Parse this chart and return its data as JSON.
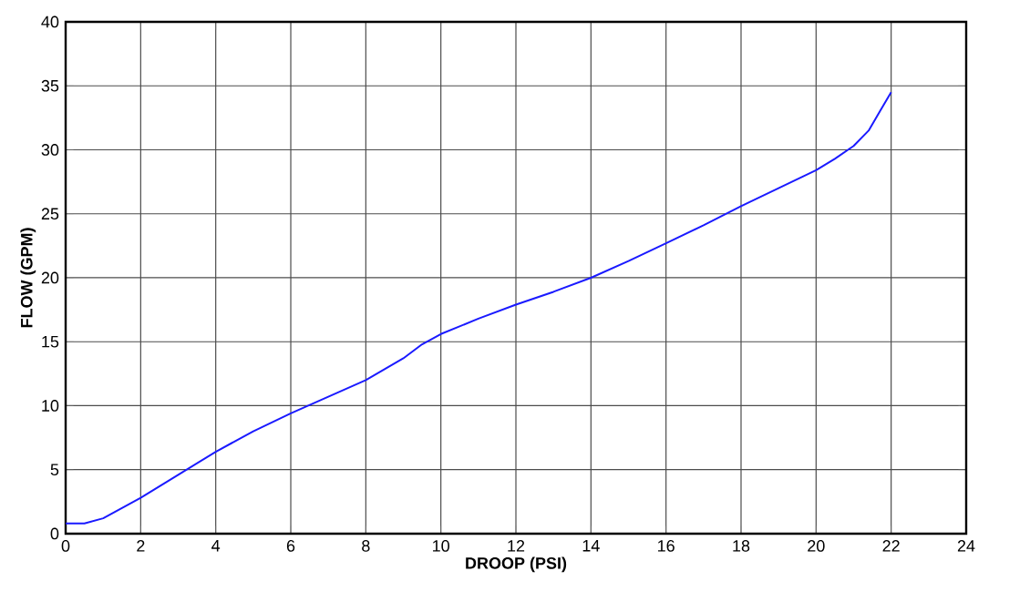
{
  "chart_data": {
    "type": "line",
    "xlabel": "DROOP (PSI)",
    "ylabel": "FLOW (GPM)",
    "xlim": [
      0,
      24
    ],
    "xticks": [
      0,
      2,
      4,
      6,
      8,
      10,
      12,
      14,
      16,
      18,
      20,
      22,
      24
    ],
    "ylim": [
      0,
      40
    ],
    "yticks": [
      0,
      5,
      10,
      15,
      20,
      25,
      30,
      35,
      40
    ],
    "grid": true,
    "marker": "none",
    "x": [
      0,
      0.5,
      1,
      2,
      3,
      4,
      5,
      6,
      7,
      8,
      9,
      9.5,
      10,
      11,
      12,
      13,
      14,
      15,
      16,
      17,
      18,
      19,
      20,
      20.5,
      21,
      21.4,
      21.7,
      22
    ],
    "series": [
      {
        "color": "#1a1aff",
        "values": [
          0.8,
          0.8,
          1.2,
          2.8,
          4.6,
          6.4,
          8,
          9.4,
          10.7,
          12,
          13.7,
          14.8,
          15.6,
          16.8,
          17.9,
          18.9,
          20,
          21.3,
          22.7,
          24.1,
          25.6,
          27,
          28.4,
          29.3,
          30.3,
          31.5,
          33,
          34.5
        ]
      }
    ]
  }
}
